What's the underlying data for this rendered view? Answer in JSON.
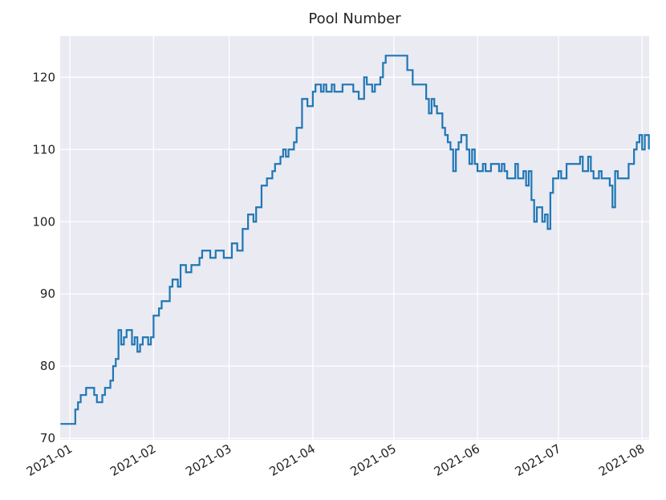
{
  "chart_data": {
    "type": "line",
    "title": "Pool Number",
    "x": [
      -3.5,
      2,
      3,
      4,
      6,
      9,
      10,
      12,
      13,
      15,
      16,
      17,
      18,
      19,
      20,
      21,
      23,
      24,
      25,
      26,
      27,
      29,
      30,
      31,
      33,
      34,
      37,
      38,
      40,
      41,
      43,
      45,
      48,
      49,
      52,
      54,
      57,
      60,
      62,
      64,
      66,
      68,
      69,
      71,
      73,
      75,
      76,
      78,
      79,
      80,
      81,
      83,
      84,
      86,
      88,
      90,
      91,
      93,
      94,
      95,
      97,
      98,
      101,
      105,
      107,
      109,
      110,
      112,
      113,
      115,
      116,
      117,
      125,
      127,
      132,
      133,
      134,
      135,
      136,
      138,
      139,
      140,
      141,
      142,
      143,
      144,
      145,
      147,
      148,
      149,
      150,
      151,
      153,
      154,
      156,
      159,
      160,
      161,
      162,
      165,
      166,
      168,
      169,
      170,
      171,
      172,
      173,
      175,
      176,
      177,
      178,
      179,
      181,
      182,
      184,
      189,
      190,
      192,
      193,
      194,
      196,
      197,
      200,
      201,
      202,
      203,
      207,
      209,
      210,
      211,
      212,
      213,
      214.5
    ],
    "series": [
      {
        "name": "Pool Number",
        "color": "#1f77b4",
        "values": [
          72,
          74,
          75,
          76,
          77,
          76,
          75,
          76,
          77,
          78,
          80,
          81,
          85,
          83,
          84,
          85,
          83,
          84,
          82,
          83,
          84,
          83,
          84,
          87,
          88,
          89,
          91,
          92,
          91,
          94,
          93,
          94,
          95,
          96,
          95,
          96,
          95,
          97,
          96,
          99,
          101,
          100,
          102,
          105,
          106,
          107,
          108,
          109,
          110,
          109,
          110,
          111,
          113,
          117,
          116,
          118,
          119,
          118,
          119,
          118,
          119,
          118,
          119,
          118,
          117,
          120,
          119,
          118,
          119,
          120,
          122,
          123,
          121,
          119,
          117,
          115,
          117,
          116,
          115,
          113,
          112,
          111,
          110,
          107,
          110,
          111,
          112,
          110,
          108,
          110,
          108,
          107,
          108,
          107,
          108,
          107,
          108,
          107,
          106,
          108,
          106,
          107,
          105,
          107,
          103,
          100,
          102,
          100,
          101,
          99,
          104,
          106,
          107,
          106,
          108,
          109,
          107,
          109,
          107,
          106,
          107,
          106,
          105,
          102,
          107,
          106,
          108,
          110,
          111,
          112,
          110,
          112,
          110
        ]
      }
    ],
    "xlim": [
      -3.6,
      214.6
    ],
    "xticks": [
      {
        "value": 0,
        "label": "2021-01"
      },
      {
        "value": 31,
        "label": "2021-02"
      },
      {
        "value": 59,
        "label": "2021-03"
      },
      {
        "value": 90,
        "label": "2021-04"
      },
      {
        "value": 120,
        "label": "2021-05"
      },
      {
        "value": 151,
        "label": "2021-06"
      },
      {
        "value": 181,
        "label": "2021-07"
      },
      {
        "value": 212,
        "label": "2021-08"
      }
    ],
    "ylim": [
      69.8,
      125.7
    ],
    "yticks": [
      70,
      80,
      90,
      100,
      110,
      120
    ],
    "grid": true,
    "step": true
  }
}
